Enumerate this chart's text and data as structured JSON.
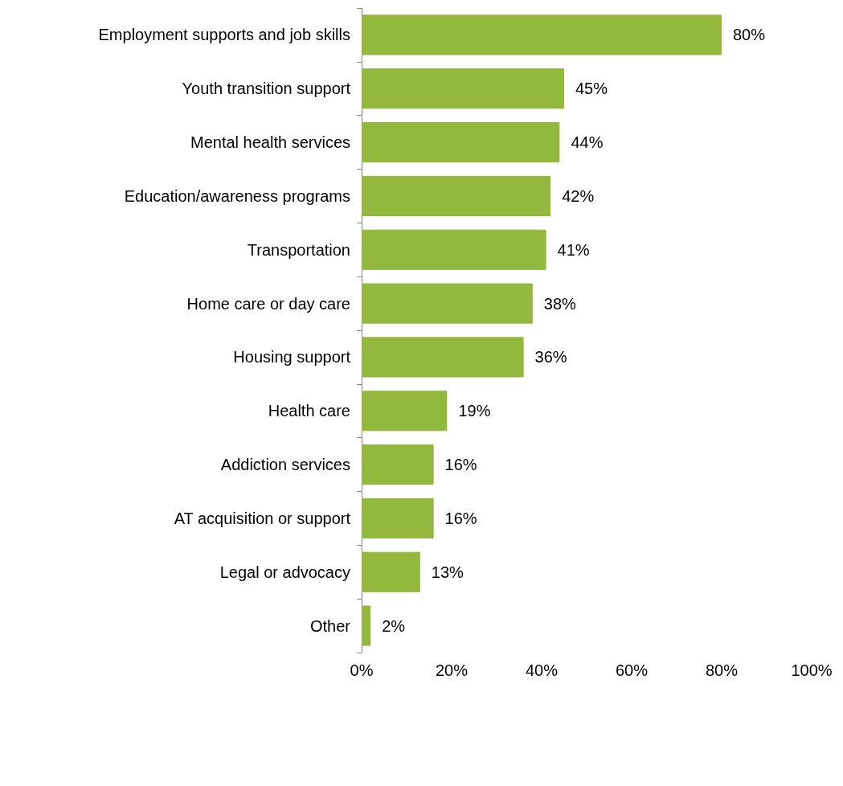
{
  "chart_data": {
    "type": "bar",
    "orientation": "horizontal",
    "categories": [
      "Employment supports and job skills",
      "Youth transition support",
      "Mental health services",
      "Education/awareness programs",
      "Transportation",
      "Home care or day care",
      "Housing support",
      "Health care",
      "Addiction services",
      "AT acquisition or support",
      "Legal or advocacy",
      "Other"
    ],
    "values": [
      80,
      45,
      44,
      42,
      41,
      38,
      36,
      19,
      16,
      16,
      13,
      2
    ],
    "value_labels": [
      "80%",
      "45%",
      "44%",
      "42%",
      "41%",
      "38%",
      "36%",
      "19%",
      "16%",
      "16%",
      "13%",
      "2%"
    ],
    "color": "#93b83e",
    "xlim": [
      0,
      100
    ],
    "xticks": [
      {
        "value": 0,
        "label": "0%"
      },
      {
        "value": 20,
        "label": "20%"
      },
      {
        "value": 40,
        "label": "40%"
      },
      {
        "value": 60,
        "label": "60%"
      },
      {
        "value": 80,
        "label": "80%"
      },
      {
        "value": 100,
        "label": "100%"
      }
    ],
    "grid": false
  }
}
